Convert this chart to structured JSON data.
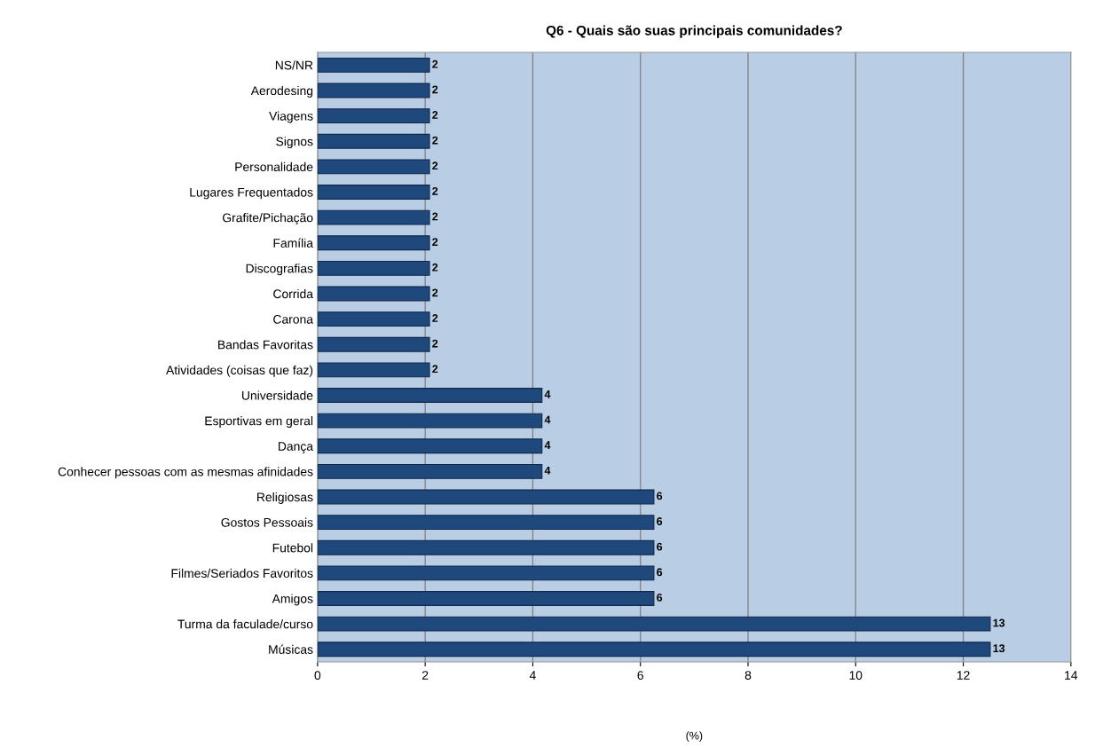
{
  "chart_data": {
    "type": "bar",
    "orientation": "horizontal",
    "title": "Q6 - Quais são suas principais comunidades?",
    "xlabel": "(%)",
    "categories": [
      "NS/NR",
      "Aerodesing",
      "Viagens",
      "Signos",
      "Personalidade",
      "Lugares Frequentados",
      "Grafite/Pichação",
      "Família",
      "Discografias",
      "Corrida",
      "Carona",
      "Bandas Favoritas",
      "Atividades (coisas que faz)",
      "Universidade",
      "Esportivas em geral",
      "Dança",
      "Conhecer pessoas com as mesmas afinidades",
      "Religiosas",
      "Gostos Pessoais",
      "Futebol",
      "Filmes/Seriados Favoritos",
      "Amigos",
      "Turma da faculade/curso",
      "Músicas"
    ],
    "values": [
      2.08,
      2.08,
      2.08,
      2.08,
      2.08,
      2.08,
      2.08,
      2.08,
      2.08,
      2.08,
      2.08,
      2.08,
      2.08,
      4.17,
      4.17,
      4.17,
      4.17,
      6.25,
      6.25,
      6.25,
      6.25,
      6.25,
      12.5,
      12.5
    ],
    "value_labels": [
      "2",
      "2",
      "2",
      "2",
      "2",
      "2",
      "2",
      "2",
      "2",
      "2",
      "2",
      "2",
      "2",
      "4",
      "4",
      "4",
      "4",
      "6",
      "6",
      "6",
      "6",
      "6",
      "13",
      "13"
    ],
    "color": "#1f497d",
    "xlim": [
      0,
      14
    ],
    "xticks": [
      0,
      2,
      4,
      6,
      8,
      10,
      12,
      14
    ],
    "grid": "x",
    "legend": false
  }
}
